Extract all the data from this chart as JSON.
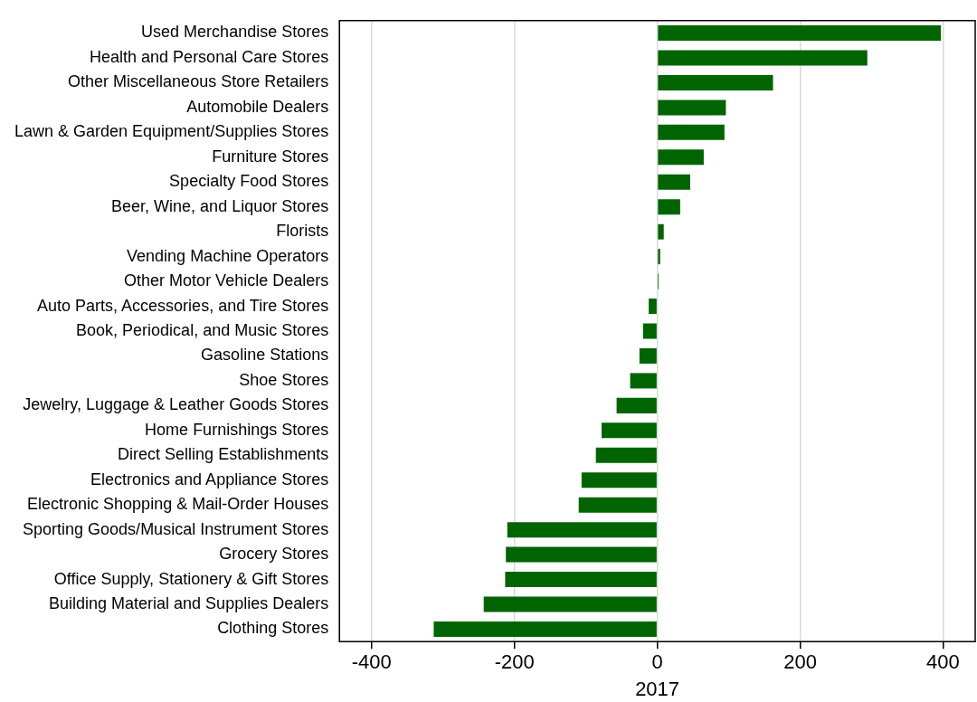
{
  "chart_data": {
    "type": "bar",
    "orientation": "horizontal",
    "xlabel": "2017",
    "categories": [
      "Used Merchandise Stores",
      "Health and Personal Care Stores",
      "Other Miscellaneous Store Retailers",
      "Automobile Dealers",
      "Lawn & Garden Equipment/Supplies Stores",
      "Furniture Stores",
      "Specialty Food Stores",
      "Beer, Wine, and Liquor Stores",
      "Florists",
      "Vending Machine Operators",
      "Other Motor Vehicle Dealers",
      "Auto Parts, Accessories, and Tire Stores",
      "Book, Periodical, and Music Stores",
      "Gasoline Stations",
      "Shoe Stores",
      "Jewelry, Luggage & Leather Goods Stores",
      "Home Furnishings Stores",
      "Direct Selling Establishments",
      "Electronics and Appliance Stores",
      "Electronic Shopping & Mail-Order Houses",
      "Sporting Goods/Musical Instrument Stores",
      "Grocery Stores",
      "Office Supply, Stationery & Gift Stores",
      "Building Material and Supplies Dealers",
      "Clothing Stores"
    ],
    "values": [
      397,
      294,
      162,
      96,
      94,
      65,
      46,
      32,
      9,
      4,
      2,
      -12,
      -20,
      -25,
      -38,
      -57,
      -78,
      -86,
      -106,
      -110,
      -210,
      -212,
      -213,
      -243,
      -313
    ],
    "color": "#006400",
    "xlim": [
      -445,
      445
    ],
    "xticks": [
      -400,
      -200,
      0,
      200,
      400
    ],
    "grid": "x"
  }
}
